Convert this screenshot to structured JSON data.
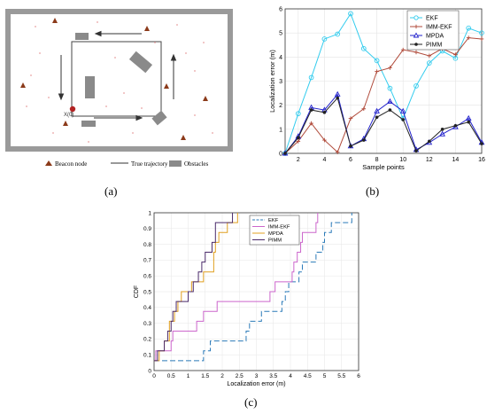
{
  "captions": {
    "a": "(a)",
    "b": "(b)",
    "c": "(c)"
  },
  "panel_a": {
    "legend": {
      "beacon": "Beacon node",
      "trajectory": "True trajectory",
      "obstacles": "Obstacles"
    },
    "start_label": "X(0)",
    "colors": {
      "beacon": "#8b3a1a",
      "wall": "#8c8c8c",
      "obstacle": "#888888",
      "start": "#b22222",
      "dots": "#e8a0a0"
    }
  },
  "chart_data": [
    {
      "type": "line",
      "title": "",
      "xlabel": "Sample points",
      "ylabel": "Localization error (m)",
      "xlim": [
        1,
        16
      ],
      "ylim": [
        0,
        6
      ],
      "xticks": [
        2,
        4,
        6,
        8,
        10,
        12,
        14,
        16
      ],
      "yticks": [
        0,
        1,
        2,
        3,
        4,
        5,
        6
      ],
      "grid": true,
      "legend_position": "top-right",
      "x": [
        1,
        2,
        3,
        4,
        5,
        6,
        7,
        8,
        9,
        10,
        11,
        12,
        13,
        14,
        15,
        16
      ],
      "series": [
        {
          "name": "EKF",
          "color": "#33ccee",
          "marker": "circle",
          "values": [
            0,
            1.65,
            3.15,
            4.75,
            4.95,
            5.8,
            4.35,
            3.85,
            2.7,
            1.45,
            2.8,
            3.75,
            4.25,
            3.95,
            5.2,
            5.0
          ]
        },
        {
          "name": "IMM-EKF",
          "color": "#b04a3a",
          "marker": "plus",
          "values": [
            0,
            0.5,
            1.25,
            0.55,
            0.05,
            1.45,
            1.85,
            3.4,
            3.55,
            4.3,
            4.2,
            4.05,
            4.35,
            4.1,
            4.8,
            4.75
          ]
        },
        {
          "name": "MPDA",
          "color": "#2222cc",
          "marker": "triangle",
          "values": [
            0,
            0.7,
            1.9,
            1.8,
            2.45,
            0.3,
            0.6,
            1.75,
            2.15,
            1.75,
            0.15,
            0.45,
            0.8,
            1.1,
            1.45,
            0.45
          ]
        },
        {
          "name": "PIMM",
          "color": "#222222",
          "marker": "dot",
          "values": [
            0,
            0.65,
            1.8,
            1.7,
            2.3,
            0.3,
            0.55,
            1.5,
            1.8,
            1.4,
            0.1,
            0.5,
            1.0,
            1.15,
            1.3,
            0.4
          ]
        }
      ]
    },
    {
      "type": "line",
      "title": "",
      "xlabel": "Localization error (m)",
      "ylabel": "CDF",
      "xlim": [
        0,
        6
      ],
      "ylim": [
        0,
        1
      ],
      "xticks": [
        0,
        0.5,
        1,
        1.5,
        2,
        2.5,
        3,
        3.5,
        4,
        4.5,
        5,
        5.5,
        6
      ],
      "yticks": [
        0,
        0.1,
        0.2,
        0.3,
        0.4,
        0.5,
        0.6,
        0.7,
        0.8,
        0.9,
        1
      ],
      "grid": true,
      "legend_position": "top-right",
      "series": [
        {
          "name": "EKF",
          "color": "#2a7ab8",
          "dash": "6,3",
          "x": [
            0,
            1.45,
            1.65,
            2.7,
            2.8,
            3.15,
            3.75,
            3.85,
            3.95,
            4.25,
            4.35,
            4.75,
            4.95,
            5.0,
            5.2,
            5.8
          ]
        },
        {
          "name": "IMM-EKF",
          "color": "#cc66cc",
          "x": [
            0,
            0.05,
            0.5,
            0.55,
            1.25,
            1.45,
            1.85,
            3.4,
            3.55,
            4.05,
            4.1,
            4.2,
            4.3,
            4.35,
            4.75,
            4.8
          ]
        },
        {
          "name": "MPDA",
          "color": "#e0a020",
          "x": [
            0,
            0.15,
            0.3,
            0.45,
            0.45,
            0.6,
            0.7,
            0.8,
            1.1,
            1.45,
            1.75,
            1.75,
            1.8,
            1.9,
            2.15,
            2.45
          ]
        },
        {
          "name": "PIMM",
          "color": "#4a2a6a",
          "x": [
            0,
            0.1,
            0.3,
            0.4,
            0.5,
            0.55,
            0.65,
            1.0,
            1.15,
            1.3,
            1.4,
            1.5,
            1.7,
            1.8,
            1.8,
            2.3
          ]
        }
      ]
    }
  ]
}
